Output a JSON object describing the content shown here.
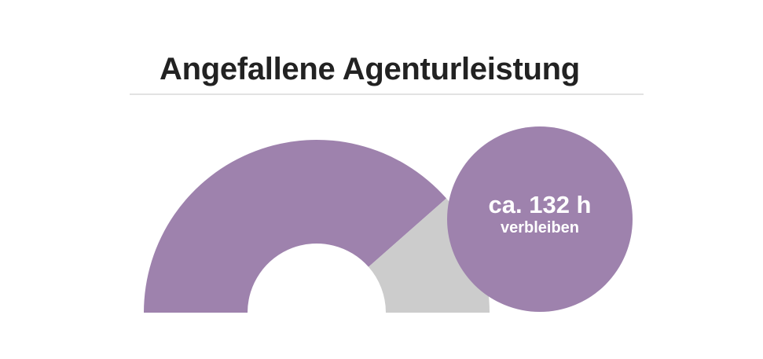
{
  "title": "Angefallene Agenturleistung",
  "colors": {
    "used": "#9e82ad",
    "remaining": "#cccccc",
    "badge": "#9e82ad",
    "title": "#222222",
    "divider": "#e2e2e2"
  },
  "badge": {
    "value": "ca. 132 h",
    "label": "verbleiben"
  },
  "chart_data": {
    "type": "pie",
    "variant": "semicircle-donut",
    "title": "Angefallene Agenturleistung",
    "slices": [
      {
        "name": "",
        "fraction": 0.77
      },
      {
        "name": "",
        "fraction": 0.23
      }
    ],
    "annotation": "ca. 132 h verbleiben"
  }
}
